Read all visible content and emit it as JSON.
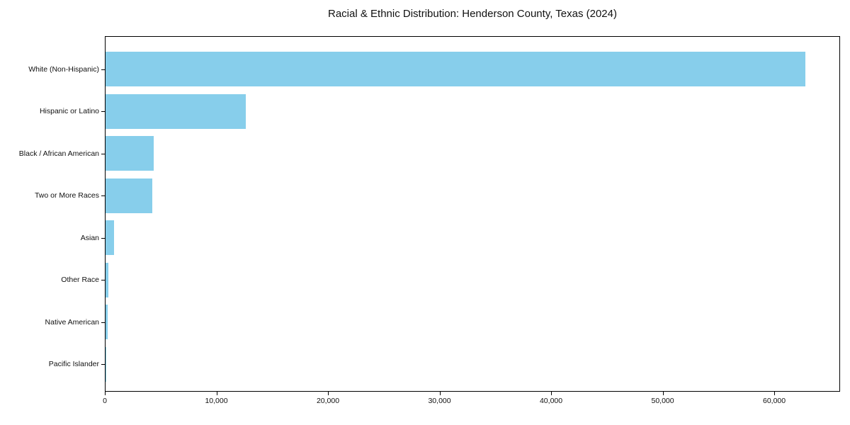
{
  "figure": {
    "background": "#ffffff"
  },
  "chart_data": {
    "type": "bar",
    "orientation": "horizontal",
    "title": "Racial & Ethnic Distribution: Henderson County, Texas (2024)",
    "categories": [
      "White (Non-Hispanic)",
      "Hispanic or Latino",
      "Black / African American",
      "Two or More Races",
      "Asian",
      "Other Race",
      "Native American",
      "Pacific Islander"
    ],
    "values": [
      62750,
      12600,
      4340,
      4190,
      790,
      280,
      190,
      40
    ],
    "xlabel": "",
    "ylabel": "",
    "xlim": [
      0,
      65900
    ],
    "xticks": [
      0,
      10000,
      20000,
      30000,
      40000,
      50000,
      60000
    ],
    "xtick_labels": [
      "0",
      "10,000",
      "20,000",
      "30,000",
      "40,000",
      "50,000",
      "60,000"
    ],
    "bar_color": "#87CEEB",
    "axis_color": "#000000",
    "text_color": "#111111",
    "grid": false,
    "legend": null
  }
}
